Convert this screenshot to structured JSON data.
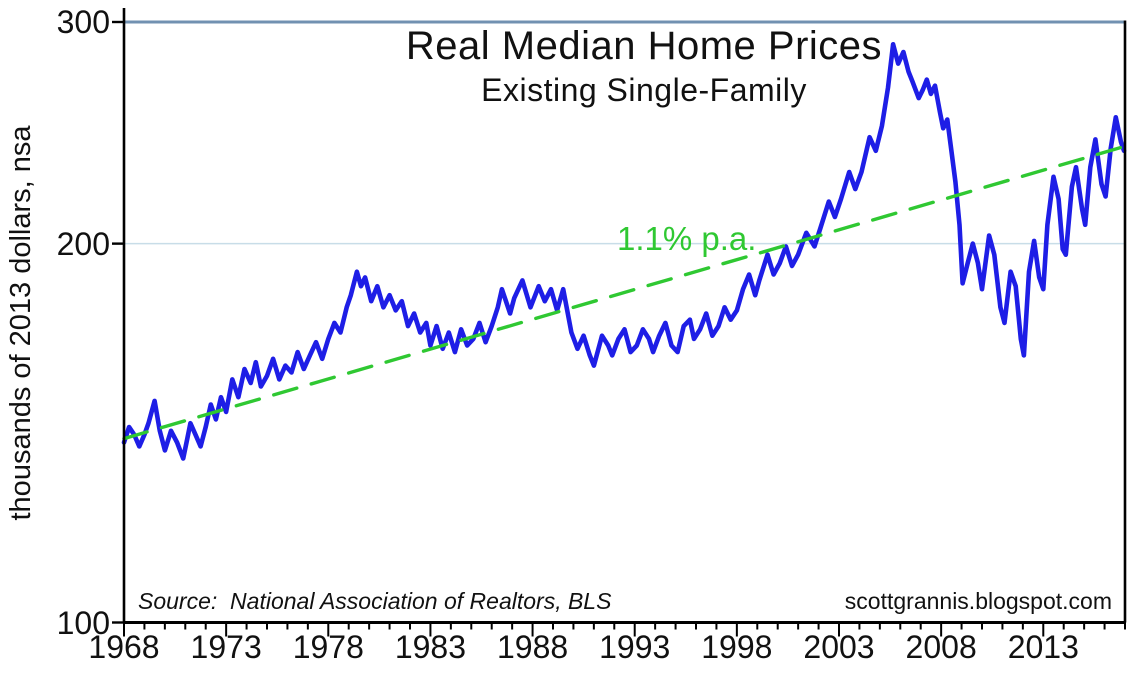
{
  "title": "Real Median Home Prices",
  "subtitle": "Existing Single-Family",
  "annotation": "1.1% p.a.",
  "source_note": "Source:  National Association of Realtors, BLS",
  "credit": "scottgrannis.blogspot.com",
  "y_axis_label": "thousands of 2013 dollars, nsa",
  "colors": {
    "price_line": "#1e1ee6",
    "trend_line": "#2fc832",
    "gridline_200": "#c8dde8",
    "gridline_300": "#7191b1",
    "axis": "#000000",
    "text": "#111111",
    "background": "#ffffff"
  },
  "chart_data": {
    "type": "line",
    "title": "Real Median Home Prices",
    "subtitle": "Existing Single-Family",
    "xlabel": "",
    "ylabel": "thousands of 2013 dollars, nsa",
    "y_scale": "log",
    "ylim": [
      100,
      300
    ],
    "xlim": [
      1968,
      2017
    ],
    "y_ticks": [
      300,
      200,
      100
    ],
    "x_ticks": [
      1968,
      1973,
      1978,
      1983,
      1988,
      1993,
      1998,
      2003,
      2008,
      2013
    ],
    "minor_x_tick_interval_years": 1,
    "grid": "y gridlines at 200 (light blue) and 300 (steel blue) only",
    "legend": "none",
    "annotations": [
      {
        "text": "1.1% p.a.",
        "x": 1992.2,
        "y": 205,
        "color": "#2fc832"
      }
    ],
    "series": [
      {
        "name": "Real median existing single-family home price (thousands of 2013 dollars, nsa)",
        "color": "#1e1ee6",
        "style": "solid",
        "points": [
          [
            1968.0,
            139
          ],
          [
            1968.25,
            143
          ],
          [
            1968.5,
            141
          ],
          [
            1968.75,
            138
          ],
          [
            1969.0,
            141
          ],
          [
            1969.2,
            144
          ],
          [
            1969.5,
            150
          ],
          [
            1969.75,
            142
          ],
          [
            1970.0,
            137
          ],
          [
            1970.3,
            142
          ],
          [
            1970.6,
            139
          ],
          [
            1970.9,
            135
          ],
          [
            1971.1,
            140
          ],
          [
            1971.25,
            144
          ],
          [
            1971.5,
            141
          ],
          [
            1971.75,
            138
          ],
          [
            1972.0,
            143
          ],
          [
            1972.25,
            149
          ],
          [
            1972.5,
            145
          ],
          [
            1972.75,
            151
          ],
          [
            1973.0,
            147
          ],
          [
            1973.3,
            156
          ],
          [
            1973.6,
            151
          ],
          [
            1973.9,
            159
          ],
          [
            1974.2,
            155
          ],
          [
            1974.45,
            161
          ],
          [
            1974.7,
            154
          ],
          [
            1975.0,
            157
          ],
          [
            1975.3,
            162
          ],
          [
            1975.6,
            156
          ],
          [
            1975.9,
            160
          ],
          [
            1976.2,
            158
          ],
          [
            1976.5,
            164
          ],
          [
            1976.8,
            159
          ],
          [
            1977.1,
            163
          ],
          [
            1977.4,
            167
          ],
          [
            1977.7,
            162
          ],
          [
            1978.0,
            168
          ],
          [
            1978.3,
            173
          ],
          [
            1978.6,
            170
          ],
          [
            1978.9,
            178
          ],
          [
            1979.1,
            182
          ],
          [
            1979.4,
            190
          ],
          [
            1979.6,
            185
          ],
          [
            1979.8,
            188
          ],
          [
            1980.1,
            180
          ],
          [
            1980.4,
            185
          ],
          [
            1980.7,
            178
          ],
          [
            1981.0,
            182
          ],
          [
            1981.3,
            177
          ],
          [
            1981.6,
            180
          ],
          [
            1981.9,
            172
          ],
          [
            1982.2,
            176
          ],
          [
            1982.5,
            170
          ],
          [
            1982.8,
            173
          ],
          [
            1983.0,
            166
          ],
          [
            1983.3,
            172
          ],
          [
            1983.6,
            165
          ],
          [
            1983.9,
            170
          ],
          [
            1984.2,
            164
          ],
          [
            1984.5,
            171
          ],
          [
            1984.8,
            166
          ],
          [
            1985.1,
            168
          ],
          [
            1985.4,
            173
          ],
          [
            1985.7,
            167
          ],
          [
            1986.0,
            172
          ],
          [
            1986.3,
            178
          ],
          [
            1986.5,
            184
          ],
          [
            1986.9,
            176
          ],
          [
            1987.1,
            181
          ],
          [
            1987.5,
            187
          ],
          [
            1987.9,
            178
          ],
          [
            1988.3,
            185
          ],
          [
            1988.6,
            180
          ],
          [
            1988.9,
            184
          ],
          [
            1989.2,
            177
          ],
          [
            1989.5,
            184
          ],
          [
            1989.9,
            170
          ],
          [
            1990.2,
            165
          ],
          [
            1990.5,
            169
          ],
          [
            1990.8,
            163
          ],
          [
            1991.0,
            160
          ],
          [
            1991.4,
            169
          ],
          [
            1991.7,
            166
          ],
          [
            1991.9,
            163
          ],
          [
            1992.2,
            168
          ],
          [
            1992.5,
            171
          ],
          [
            1992.8,
            164
          ],
          [
            1993.1,
            166
          ],
          [
            1993.4,
            171
          ],
          [
            1993.7,
            168
          ],
          [
            1993.9,
            164
          ],
          [
            1994.2,
            169
          ],
          [
            1994.5,
            173
          ],
          [
            1994.8,
            166
          ],
          [
            1995.1,
            164
          ],
          [
            1995.4,
            172
          ],
          [
            1995.7,
            174
          ],
          [
            1995.9,
            168
          ],
          [
            1996.2,
            171
          ],
          [
            1996.5,
            176
          ],
          [
            1996.8,
            169
          ],
          [
            1997.1,
            172
          ],
          [
            1997.4,
            178
          ],
          [
            1997.7,
            174
          ],
          [
            1998.0,
            177
          ],
          [
            1998.3,
            184
          ],
          [
            1998.6,
            189
          ],
          [
            1998.9,
            182
          ],
          [
            1999.1,
            187
          ],
          [
            1999.5,
            196
          ],
          [
            1999.8,
            189
          ],
          [
            2000.1,
            193
          ],
          [
            2000.4,
            199
          ],
          [
            2000.7,
            192
          ],
          [
            2001.0,
            196
          ],
          [
            2001.4,
            204
          ],
          [
            2001.8,
            199
          ],
          [
            2002.1,
            206
          ],
          [
            2002.5,
            216
          ],
          [
            2002.8,
            210
          ],
          [
            2003.1,
            217
          ],
          [
            2003.5,
            228
          ],
          [
            2003.8,
            221
          ],
          [
            2004.1,
            228
          ],
          [
            2004.5,
            243
          ],
          [
            2004.8,
            237
          ],
          [
            2005.1,
            248
          ],
          [
            2005.4,
            266
          ],
          [
            2005.65,
            288
          ],
          [
            2005.9,
            278
          ],
          [
            2006.15,
            284
          ],
          [
            2006.4,
            274
          ],
          [
            2006.6,
            269
          ],
          [
            2006.9,
            261
          ],
          [
            2007.1,
            265
          ],
          [
            2007.3,
            270
          ],
          [
            2007.5,
            263
          ],
          [
            2007.7,
            267
          ],
          [
            2007.95,
            254
          ],
          [
            2008.1,
            247
          ],
          [
            2008.3,
            251
          ],
          [
            2008.5,
            237
          ],
          [
            2008.7,
            224
          ],
          [
            2008.9,
            207
          ],
          [
            2009.05,
            186
          ],
          [
            2009.3,
            193
          ],
          [
            2009.55,
            200
          ],
          [
            2009.8,
            193
          ],
          [
            2010.0,
            184
          ],
          [
            2010.35,
            203
          ],
          [
            2010.6,
            196
          ],
          [
            2010.9,
            178
          ],
          [
            2011.1,
            173
          ],
          [
            2011.4,
            190
          ],
          [
            2011.65,
            185
          ],
          [
            2011.9,
            168
          ],
          [
            2012.05,
            163
          ],
          [
            2012.3,
            190
          ],
          [
            2012.55,
            201
          ],
          [
            2012.8,
            188
          ],
          [
            2013.0,
            184
          ],
          [
            2013.2,
            207
          ],
          [
            2013.5,
            226
          ],
          [
            2013.75,
            217
          ],
          [
            2013.95,
            198
          ],
          [
            2014.1,
            196
          ],
          [
            2014.4,
            222
          ],
          [
            2014.6,
            230
          ],
          [
            2014.9,
            213
          ],
          [
            2015.05,
            207
          ],
          [
            2015.3,
            230
          ],
          [
            2015.55,
            242
          ],
          [
            2015.85,
            223
          ],
          [
            2016.05,
            218
          ],
          [
            2016.3,
            238
          ],
          [
            2016.55,
            252
          ],
          [
            2016.8,
            241
          ],
          [
            2016.95,
            237
          ]
        ]
      },
      {
        "name": "1.1% p.a. trend",
        "color": "#2fc832",
        "style": "dashed",
        "points": [
          [
            1968.0,
            140
          ],
          [
            2017.0,
            239
          ]
        ]
      }
    ]
  }
}
